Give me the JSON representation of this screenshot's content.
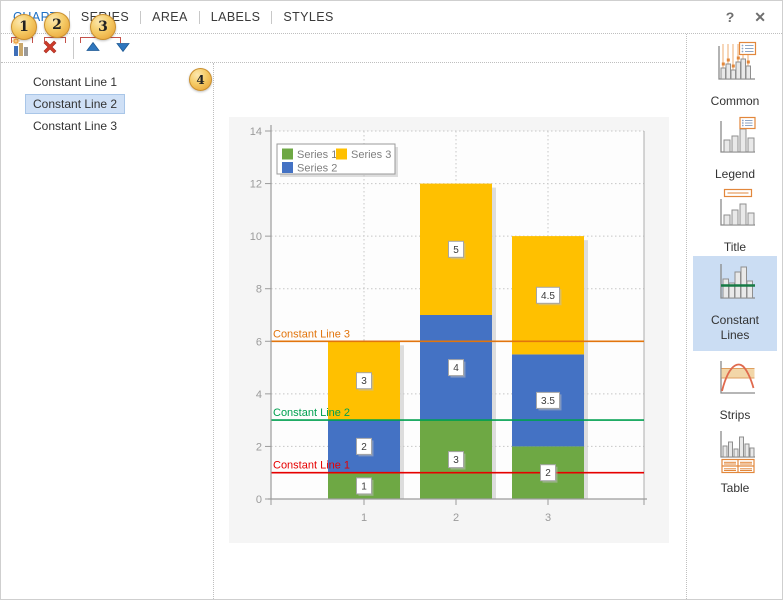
{
  "window": {
    "help_label": "?",
    "close_label": "✕"
  },
  "menu": {
    "items": [
      {
        "label": "CHART",
        "active": true
      },
      {
        "label": "SERIES",
        "active": false
      },
      {
        "label": "AREA",
        "active": false
      },
      {
        "label": "LABELS",
        "active": false
      },
      {
        "label": "STYLES",
        "active": false
      }
    ]
  },
  "toolbar": {
    "buttons": [
      {
        "name": "add-constant-line",
        "icon": "add-chart-element-icon"
      },
      {
        "name": "delete-constant-line",
        "icon": "delete-icon"
      },
      {
        "name": "move-up",
        "icon": "move-up-icon"
      },
      {
        "name": "move-down",
        "icon": "move-down-icon"
      }
    ]
  },
  "callouts": {
    "badges": [
      "1",
      "2",
      "3",
      "4"
    ]
  },
  "constant_lines_list": {
    "items": [
      "Constant Line 1",
      "Constant Line 2",
      "Constant Line 3"
    ],
    "selected_index": 1
  },
  "sidebar": {
    "selected_index": 3,
    "items": [
      {
        "label": "Common",
        "icon": "common-icon"
      },
      {
        "label": "Legend",
        "icon": "legend-icon"
      },
      {
        "label": "Title",
        "icon": "title-icon"
      },
      {
        "label": "Constant Lines",
        "icon": "constant-lines-icon"
      },
      {
        "label": "Strips",
        "icon": "strips-icon"
      },
      {
        "label": "Table",
        "icon": "table-icon"
      }
    ]
  },
  "chart_data": {
    "type": "bar",
    "stacked": true,
    "categories": [
      "1",
      "2",
      "3"
    ],
    "series": [
      {
        "name": "Series 1",
        "color": "#6EA844",
        "values": [
          1,
          3,
          2
        ]
      },
      {
        "name": "Series 2",
        "color": "#4472C4",
        "values": [
          2,
          4,
          3.5
        ]
      },
      {
        "name": "Series 3",
        "color": "#FFC000",
        "values": [
          3,
          5,
          4.5
        ]
      }
    ],
    "data_labels": true,
    "constant_lines": [
      {
        "label": "Constant Line 1",
        "value": 1,
        "color": "#E60000"
      },
      {
        "label": "Constant Line 2",
        "value": 3,
        "color": "#00A050"
      },
      {
        "label": "Constant Line 3",
        "value": 6,
        "color": "#E2750D"
      }
    ],
    "ylim": [
      0,
      14
    ],
    "ytick_step": 2,
    "grid": true,
    "axis_text_color": "#9B9B9B",
    "legend": {
      "position": "top-left",
      "layout": [
        [
          "Series 1",
          "Series 3"
        ],
        [
          "Series 2"
        ]
      ]
    }
  }
}
